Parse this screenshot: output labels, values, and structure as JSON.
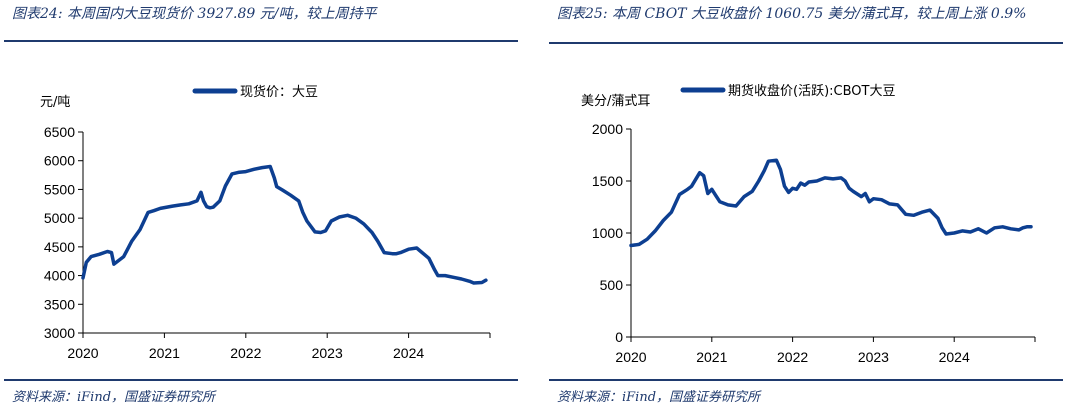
{
  "colors": {
    "series": "#0d3f91",
    "accent": "#1f3a6e"
  },
  "chart_data": [
    {
      "type": "line",
      "title": "图表24:  本周国内大豆现货价 3927.89 元/吨，较上周持平",
      "ylabel": "元/吨",
      "xlabel": "",
      "source": "资料来源：iFind，国盛证券研究所",
      "ylim": [
        3000,
        6500
      ],
      "yticks": [
        "6500",
        "6000",
        "5500",
        "5000",
        "4500",
        "4000",
        "3500",
        "3000"
      ],
      "xlim": [
        2020.0,
        2025.0
      ],
      "xticks": [
        "2020",
        "2021",
        "2022",
        "2023",
        "2024"
      ],
      "grid": false,
      "legend": "top-center",
      "series": [
        {
          "name": "现货价：大豆",
          "x": [
            2020.0,
            2020.04,
            2020.1,
            2020.2,
            2020.3,
            2020.35,
            2020.38,
            2020.5,
            2020.6,
            2020.7,
            2020.8,
            2020.87,
            2020.95,
            2021.1,
            2021.2,
            2021.3,
            2021.4,
            2021.45,
            2021.48,
            2021.52,
            2021.56,
            2021.6,
            2021.68,
            2021.75,
            2021.83,
            2021.92,
            2022.0,
            2022.1,
            2022.2,
            2022.3,
            2022.35,
            2022.38,
            2022.45,
            2022.55,
            2022.65,
            2022.7,
            2022.75,
            2022.85,
            2022.92,
            2022.98,
            2023.05,
            2023.15,
            2023.25,
            2023.35,
            2023.45,
            2023.55,
            2023.62,
            2023.7,
            2023.8,
            2023.85,
            2023.9,
            2024.0,
            2024.1,
            2024.15,
            2024.25,
            2024.32,
            2024.36,
            2024.45,
            2024.55,
            2024.65,
            2024.75,
            2024.8,
            2024.9,
            2024.95
          ],
          "values": [
            3960,
            4230,
            4330,
            4370,
            4420,
            4400,
            4200,
            4330,
            4600,
            4800,
            5100,
            5130,
            5170,
            5210,
            5230,
            5250,
            5300,
            5450,
            5300,
            5200,
            5180,
            5190,
            5300,
            5560,
            5770,
            5800,
            5810,
            5850,
            5880,
            5900,
            5700,
            5550,
            5490,
            5400,
            5300,
            5100,
            4950,
            4760,
            4750,
            4780,
            4950,
            5020,
            5050,
            5000,
            4900,
            4750,
            4600,
            4400,
            4380,
            4380,
            4400,
            4460,
            4480,
            4420,
            4300,
            4100,
            4000,
            4000,
            3970,
            3940,
            3900,
            3870,
            3880,
            3920
          ]
        }
      ]
    },
    {
      "type": "line",
      "title": "图表25:  本周 CBOT 大豆收盘价 1060.75 美分/蒲式耳，较上周上涨 0.9%",
      "ylabel": "美分/蒲式耳",
      "xlabel": "",
      "source": "资料来源：iFind，国盛证券研究所",
      "ylim": [
        0,
        2000
      ],
      "yticks": [
        "2000",
        "1500",
        "1000",
        "500",
        "0"
      ],
      "xlim": [
        2020.0,
        2025.0
      ],
      "xticks": [
        "2020",
        "2021",
        "2022",
        "2023",
        "2024"
      ],
      "grid": false,
      "legend": "top-center",
      "series": [
        {
          "name": "期货收盘价(活跃):CBOT大豆",
          "x": [
            2020.0,
            2020.1,
            2020.2,
            2020.3,
            2020.4,
            2020.5,
            2020.6,
            2020.7,
            2020.75,
            2020.85,
            2020.9,
            2020.95,
            2021.0,
            2021.05,
            2021.1,
            2021.2,
            2021.3,
            2021.4,
            2021.5,
            2021.58,
            2021.65,
            2021.7,
            2021.8,
            2021.85,
            2021.9,
            2021.95,
            2022.0,
            2022.05,
            2022.1,
            2022.15,
            2022.2,
            2022.3,
            2022.4,
            2022.5,
            2022.6,
            2022.65,
            2022.7,
            2022.75,
            2022.85,
            2022.9,
            2022.95,
            2023.0,
            2023.1,
            2023.2,
            2023.3,
            2023.4,
            2023.5,
            2023.6,
            2023.7,
            2023.8,
            2023.85,
            2023.9,
            2024.0,
            2024.1,
            2024.2,
            2024.3,
            2024.4,
            2024.5,
            2024.6,
            2024.7,
            2024.8,
            2024.85,
            2024.9,
            2024.95
          ],
          "values": [
            880,
            890,
            940,
            1020,
            1120,
            1200,
            1370,
            1420,
            1450,
            1580,
            1550,
            1380,
            1420,
            1360,
            1300,
            1270,
            1260,
            1350,
            1400,
            1500,
            1600,
            1690,
            1700,
            1610,
            1450,
            1390,
            1430,
            1420,
            1480,
            1460,
            1490,
            1500,
            1530,
            1520,
            1530,
            1500,
            1430,
            1400,
            1350,
            1380,
            1300,
            1330,
            1320,
            1280,
            1270,
            1180,
            1170,
            1200,
            1220,
            1140,
            1050,
            990,
            1000,
            1020,
            1010,
            1040,
            1000,
            1050,
            1060,
            1040,
            1030,
            1050,
            1060,
            1061
          ]
        }
      ]
    }
  ]
}
